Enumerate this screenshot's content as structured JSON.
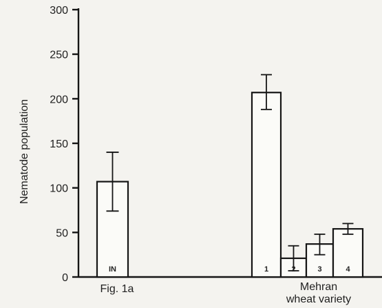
{
  "chart_data": {
    "type": "bar",
    "ylabel": "Nematode population",
    "ylim": [
      0,
      300
    ],
    "yticks": [
      0,
      50,
      100,
      150,
      200,
      250,
      300
    ],
    "groups": [
      {
        "label": [
          "Fig. 1a"
        ],
        "bar_labels": [
          "IN"
        ]
      },
      {
        "label": [
          "Mehran",
          "wheat variety"
        ],
        "bar_labels": [
          "1",
          "2",
          "3",
          "4"
        ]
      }
    ],
    "bars": [
      {
        "group": 0,
        "label": "IN",
        "value": 107,
        "error_low": 74,
        "error_high": 140
      },
      {
        "group": 1,
        "label": "1",
        "value": 207,
        "error_low": 188,
        "error_high": 227
      },
      {
        "group": 1,
        "label": "2",
        "value": 21,
        "error_low": 7,
        "error_high": 35
      },
      {
        "group": 1,
        "label": "3",
        "value": 37,
        "error_low": 25,
        "error_high": 48
      },
      {
        "group": 1,
        "label": "4",
        "value": 54,
        "error_low": 48,
        "error_high": 60
      }
    ],
    "grid": false,
    "legend": "none"
  }
}
